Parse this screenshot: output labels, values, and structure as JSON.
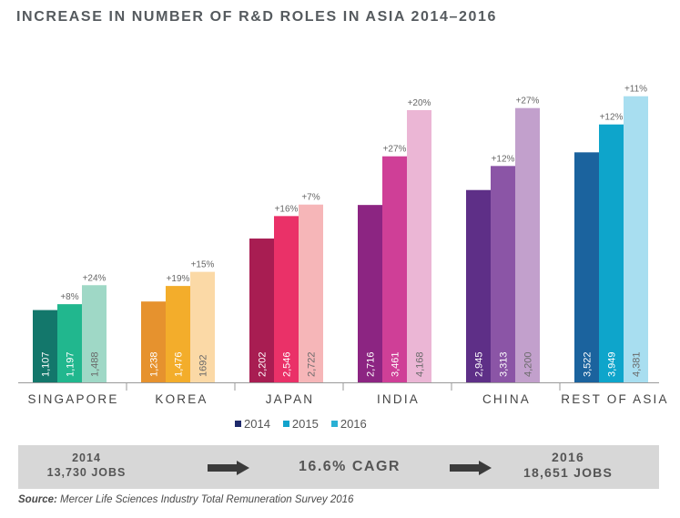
{
  "title": "INCREASE IN NUMBER OF R&D ROLES IN ASIA 2014–2016",
  "chart_data": {
    "type": "bar",
    "title": "INCREASE IN NUMBER OF R&D ROLES IN ASIA 2014–2016",
    "categories": [
      "SINGAPORE",
      "KOREA",
      "JAPAN",
      "INDIA",
      "CHINA",
      "REST OF ASIA"
    ],
    "series": [
      {
        "name": "2014",
        "values": [
          1107,
          1238,
          2202,
          2716,
          2945,
          3522
        ],
        "labels": [
          "1,107",
          "1,238",
          "2,202",
          "2,716",
          "2,945",
          "3,522"
        ]
      },
      {
        "name": "2015",
        "values": [
          1197,
          1476,
          2546,
          3461,
          3313,
          3949
        ],
        "labels": [
          "1,197",
          "1,476",
          "2,546",
          "3,461",
          "3,313",
          "3,949"
        ],
        "growth": [
          "+8%",
          "+19%",
          "+16%",
          "+27%",
          "+12%",
          "+12%"
        ]
      },
      {
        "name": "2016",
        "values": [
          1488,
          1692,
          2722,
          4168,
          4200,
          4381
        ],
        "labels": [
          "1,488",
          "1692",
          "2,722",
          "4,168",
          "4,200",
          "4,381"
        ],
        "growth": [
          "+24%",
          "+15%",
          "+7%",
          "+20%",
          "+27%",
          "+11%"
        ]
      }
    ],
    "colors": [
      [
        "#13776b",
        "#21b78e",
        "#9fd8c6"
      ],
      [
        "#e6922e",
        "#f3ad2b",
        "#fbd9a6"
      ],
      [
        "#a81d52",
        "#ea3168",
        "#f6b6b8"
      ],
      [
        "#8c2582",
        "#cf3f97",
        "#ebb6d5"
      ],
      [
        "#5e2f87",
        "#8b55a6",
        "#c2a0cc"
      ],
      [
        "#1b639e",
        "#0ea5cb",
        "#a8def0"
      ]
    ],
    "ylim": [
      0,
      4600
    ],
    "legend_position": "bottom"
  },
  "legend": {
    "items": [
      {
        "label": "2014",
        "color": "#1f2a6b"
      },
      {
        "label": "2015",
        "color": "#13a3cc"
      },
      {
        "label": "2016",
        "color": "#2ab0d4"
      }
    ]
  },
  "summary": {
    "left_year": "2014",
    "left_jobs": "13,730 JOBS",
    "cagr": "16.6% CAGR",
    "right_year": "2016",
    "right_jobs": "18,651 JOBS"
  },
  "source": {
    "label": "Source:",
    "text": " Mercer Life Sciences Industry Total Remuneration Survey 2016"
  }
}
